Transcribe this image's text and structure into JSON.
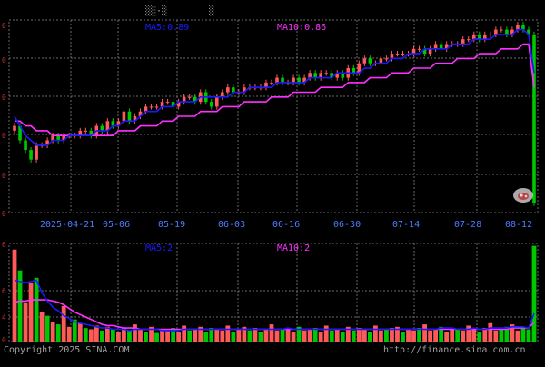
{
  "header": {
    "title_left": "░░·░",
    "title_right": "░"
  },
  "colors": {
    "background": "#000000",
    "grid": "#6a6a6a",
    "up": "#ff5a5a",
    "down": "#00c800",
    "ma5": "#1a1aff",
    "ma10": "#ff30ff",
    "axis_text": "#c83232",
    "date_text": "#4a7cff",
    "footer_text": "#a0a0a0"
  },
  "chart_data": [
    {
      "type": "candlestick",
      "panel": "price",
      "legend": [
        {
          "label": "MA5:0.89",
          "color": "#1a1aff"
        },
        {
          "label": "MA10:0.86",
          "color": "#ff30ff"
        }
      ],
      "y_tick_labels": [
        "0",
        "0",
        "0",
        "0",
        "0",
        "0"
      ],
      "x_tick_labels": [
        "2025-04-21",
        "05-06",
        "05-19",
        "06-03",
        "06-16",
        "06-30",
        "07-14",
        "07-28",
        "08-12"
      ],
      "ylim": [
        0.6,
        1.0
      ],
      "grid": true,
      "closes": [
        0.78,
        0.75,
        0.73,
        0.71,
        0.74,
        0.74,
        0.75,
        0.76,
        0.75,
        0.76,
        0.76,
        0.76,
        0.77,
        0.77,
        0.76,
        0.78,
        0.77,
        0.79,
        0.78,
        0.79,
        0.81,
        0.79,
        0.8,
        0.81,
        0.82,
        0.82,
        0.82,
        0.83,
        0.83,
        0.82,
        0.83,
        0.84,
        0.84,
        0.83,
        0.85,
        0.83,
        0.82,
        0.84,
        0.85,
        0.86,
        0.85,
        0.85,
        0.86,
        0.86,
        0.86,
        0.86,
        0.87,
        0.87,
        0.88,
        0.87,
        0.87,
        0.88,
        0.87,
        0.88,
        0.89,
        0.88,
        0.89,
        0.89,
        0.88,
        0.89,
        0.88,
        0.9,
        0.89,
        0.91,
        0.92,
        0.91,
        0.91,
        0.92,
        0.92,
        0.93,
        0.93,
        0.93,
        0.93,
        0.94,
        0.94,
        0.93,
        0.94,
        0.95,
        0.94,
        0.95,
        0.95,
        0.95,
        0.96,
        0.96,
        0.97,
        0.96,
        0.97,
        0.97,
        0.98,
        0.98,
        0.97,
        0.98,
        0.99,
        0.98,
        0.97,
        0.62
      ],
      "ma5": [
        0.8,
        0.78,
        0.76,
        0.75,
        0.74,
        0.74,
        0.74,
        0.75,
        0.75,
        0.75,
        0.76,
        0.76,
        0.76,
        0.76,
        0.76,
        0.77,
        0.77,
        0.77,
        0.78,
        0.78,
        0.79,
        0.79,
        0.79,
        0.8,
        0.81,
        0.81,
        0.81,
        0.82,
        0.82,
        0.82,
        0.83,
        0.83,
        0.83,
        0.83,
        0.84,
        0.84,
        0.84,
        0.84,
        0.84,
        0.84,
        0.85,
        0.85,
        0.85,
        0.86,
        0.86,
        0.86,
        0.86,
        0.86,
        0.87,
        0.87,
        0.87,
        0.87,
        0.87,
        0.87,
        0.88,
        0.88,
        0.88,
        0.88,
        0.88,
        0.89,
        0.89,
        0.89,
        0.89,
        0.89,
        0.9,
        0.9,
        0.91,
        0.91,
        0.91,
        0.92,
        0.92,
        0.92,
        0.93,
        0.93,
        0.93,
        0.94,
        0.94,
        0.94,
        0.94,
        0.94,
        0.95,
        0.95,
        0.95,
        0.95,
        0.96,
        0.96,
        0.96,
        0.96,
        0.97,
        0.97,
        0.97,
        0.97,
        0.98,
        0.98,
        0.97,
        0.89
      ],
      "ma10": [
        0.79,
        0.79,
        0.78,
        0.78,
        0.77,
        0.77,
        0.77,
        0.76,
        0.76,
        0.76,
        0.76,
        0.76,
        0.76,
        0.76,
        0.76,
        0.76,
        0.76,
        0.76,
        0.76,
        0.77,
        0.77,
        0.77,
        0.77,
        0.78,
        0.78,
        0.78,
        0.78,
        0.79,
        0.79,
        0.79,
        0.8,
        0.8,
        0.8,
        0.8,
        0.81,
        0.81,
        0.81,
        0.81,
        0.82,
        0.82,
        0.82,
        0.82,
        0.83,
        0.83,
        0.83,
        0.83,
        0.83,
        0.84,
        0.84,
        0.84,
        0.84,
        0.85,
        0.85,
        0.85,
        0.85,
        0.85,
        0.86,
        0.86,
        0.86,
        0.86,
        0.86,
        0.87,
        0.87,
        0.87,
        0.87,
        0.88,
        0.88,
        0.88,
        0.88,
        0.89,
        0.89,
        0.89,
        0.89,
        0.9,
        0.9,
        0.9,
        0.9,
        0.91,
        0.91,
        0.91,
        0.91,
        0.92,
        0.92,
        0.92,
        0.92,
        0.93,
        0.93,
        0.93,
        0.93,
        0.94,
        0.94,
        0.94,
        0.94,
        0.95,
        0.95,
        0.86
      ]
    },
    {
      "type": "bar",
      "panel": "volume",
      "legend": [
        {
          "label": "MA5:2",
          "color": "#1a1aff"
        },
        {
          "label": "MA10:2",
          "color": "#ff30ff"
        }
      ],
      "y_tick_labels": [
        "6",
        "6",
        "4",
        "0"
      ],
      "ylim": [
        0,
        8
      ],
      "grid": true,
      "values": [
        7.5,
        5.8,
        3.2,
        4.8,
        5.2,
        2.4,
        2.1,
        1.6,
        1.4,
        2.9,
        1.2,
        1.8,
        1.5,
        1.1,
        1.0,
        1.3,
        0.9,
        1.2,
        1.0,
        0.8,
        1.1,
        0.9,
        1.4,
        1.0,
        0.8,
        1.2,
        0.7,
        1.0,
        0.9,
        1.1,
        0.8,
        1.3,
        0.9,
        1.0,
        1.2,
        0.8,
        1.1,
        1.0,
        0.9,
        1.3,
        0.8,
        1.0,
        1.2,
        0.9,
        1.1,
        0.8,
        1.0,
        1.4,
        0.9,
        1.0,
        1.1,
        0.8,
        1.2,
        0.9,
        1.0,
        1.1,
        0.8,
        1.3,
        0.9,
        1.0,
        0.8,
        1.2,
        0.9,
        1.1,
        1.0,
        0.8,
        1.3,
        0.9,
        1.0,
        1.1,
        1.2,
        0.8,
        1.0,
        0.9,
        1.1,
        1.4,
        0.9,
        1.0,
        1.2,
        0.8,
        1.1,
        1.0,
        0.9,
        1.3,
        1.0,
        0.8,
        1.1,
        1.5,
        0.9,
        1.0,
        1.2,
        1.4,
        0.9,
        1.1,
        1.0,
        7.8
      ],
      "up": [
        1,
        0,
        1,
        1,
        0,
        1,
        0,
        1,
        0,
        1,
        1,
        0,
        1,
        0,
        1,
        1,
        0,
        1,
        0,
        1,
        1,
        0,
        1,
        1,
        0,
        1,
        0,
        1,
        1,
        0,
        1,
        1,
        0,
        1,
        1,
        0,
        0,
        1,
        1,
        1,
        0,
        1,
        1,
        0,
        1,
        0,
        1,
        1,
        1,
        0,
        1,
        1,
        0,
        1,
        1,
        0,
        1,
        1,
        0,
        1,
        0,
        1,
        0,
        1,
        1,
        0,
        1,
        1,
        0,
        1,
        1,
        0,
        1,
        1,
        0,
        1,
        1,
        1,
        0,
        1,
        1,
        0,
        1,
        1,
        1,
        0,
        1,
        1,
        1,
        0,
        0,
        1,
        1,
        0,
        0,
        0
      ],
      "ma5": [
        5.0,
        4.9,
        4.8,
        4.9,
        5.0,
        4.0,
        3.3,
        2.8,
        2.5,
        2.1,
        1.9,
        1.6,
        1.5,
        1.4,
        1.3,
        1.2,
        1.1,
        1.1,
        1.0,
        1.0,
        1.0,
        0.9,
        1.0,
        1.0,
        1.0,
        1.0,
        1.0,
        0.9,
        0.9,
        0.9,
        0.9,
        1.0,
        1.0,
        1.0,
        1.0,
        1.0,
        1.0,
        1.0,
        1.0,
        1.0,
        1.0,
        1.0,
        1.0,
        1.0,
        1.0,
        1.0,
        1.0,
        1.0,
        1.0,
        1.0,
        1.1,
        1.0,
        1.0,
        1.0,
        1.0,
        1.0,
        1.0,
        1.0,
        1.0,
        1.0,
        1.0,
        1.0,
        1.0,
        1.0,
        1.0,
        1.0,
        1.0,
        1.0,
        1.0,
        1.0,
        1.0,
        1.0,
        1.0,
        1.0,
        1.0,
        1.0,
        1.0,
        1.0,
        1.1,
        1.1,
        1.1,
        1.0,
        1.0,
        1.0,
        1.1,
        1.0,
        1.0,
        1.1,
        1.1,
        1.1,
        1.1,
        1.2,
        1.2,
        1.2,
        1.1,
        2.3
      ],
      "ma10": [
        3.2,
        3.3,
        3.3,
        3.4,
        3.4,
        3.4,
        3.4,
        3.3,
        3.2,
        3.0,
        2.7,
        2.4,
        2.2,
        2.0,
        1.8,
        1.6,
        1.4,
        1.3,
        1.3,
        1.2,
        1.1,
        1.1,
        1.1,
        1.0,
        1.0,
        1.0,
        1.0,
        1.0,
        1.0,
        1.0,
        1.0,
        1.0,
        1.0,
        1.0,
        1.0,
        1.0,
        1.0,
        1.0,
        1.0,
        1.0,
        1.0,
        1.0,
        1.0,
        1.0,
        1.0,
        1.0,
        1.0,
        1.0,
        1.0,
        1.0,
        1.0,
        1.0,
        1.0,
        1.0,
        1.0,
        1.0,
        1.0,
        1.0,
        1.0,
        1.0,
        1.0,
        1.0,
        1.0,
        1.0,
        1.0,
        1.0,
        1.0,
        1.0,
        1.0,
        1.0,
        1.0,
        1.0,
        1.0,
        1.0,
        1.0,
        1.0,
        1.0,
        1.0,
        1.0,
        1.0,
        1.0,
        1.0,
        1.0,
        1.0,
        1.0,
        1.0,
        1.0,
        1.0,
        1.0,
        1.0,
        1.0,
        1.1,
        1.1,
        1.1,
        1.1,
        1.6
      ]
    }
  ],
  "footer": {
    "copyright": "Copyright 2025 SINA.COM",
    "url": "http://finance.sina.com.cn"
  },
  "watermark": "sina-logo"
}
